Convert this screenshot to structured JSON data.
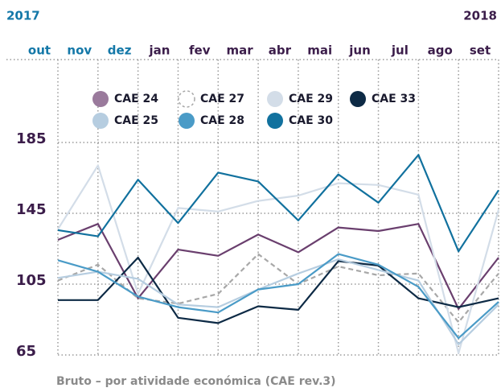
{
  "chart_data": {
    "type": "line",
    "years": [
      {
        "label": "2017",
        "color": "#1478a8"
      },
      {
        "label": "2018",
        "color": "#3b1d4a"
      }
    ],
    "categories": [
      "out",
      "nov",
      "dez",
      "jan",
      "fev",
      "mar",
      "abr",
      "mai",
      "jun",
      "jul",
      "ago",
      "set"
    ],
    "category_colors": [
      "#1478a8",
      "#1478a8",
      "#1478a8",
      "#3b1d4a",
      "#3b1d4a",
      "#3b1d4a",
      "#3b1d4a",
      "#3b1d4a",
      "#3b1d4a",
      "#3b1d4a",
      "#3b1d4a",
      "#3b1d4a"
    ],
    "ylim": [
      65,
      185
    ],
    "yticks": [
      65,
      105,
      145,
      185
    ],
    "grid": true,
    "footnote": "Bruto – por atividade económica (CAE rev.3)",
    "series": [
      {
        "name": "CAE 24",
        "color": "#6a3f6e",
        "legend_color": "#9a7a9c",
        "values": [
          130,
          139,
          97,
          124.5,
          121,
          133,
          123,
          137,
          135,
          139,
          91,
          120
        ]
      },
      {
        "name": "CAE 27",
        "color": "#a8a8a8",
        "dashed": true,
        "values": [
          107,
          116,
          97,
          94,
          99.5,
          122,
          105,
          115,
          110,
          111,
          83.5,
          111
        ]
      },
      {
        "name": "CAE 29",
        "color": "#d3dde8",
        "values": [
          136,
          172,
          99.5,
          148,
          146,
          152,
          155,
          162,
          161,
          155.5,
          66,
          147
        ]
      },
      {
        "name": "CAE 33",
        "color": "#0d2a45",
        "values": [
          96,
          96,
          120,
          86,
          83,
          92.5,
          90.5,
          118,
          115.5,
          97,
          92,
          97
        ]
      },
      {
        "name": "CAE 25",
        "color": "#b6cde0",
        "values": [
          108.5,
          112,
          108,
          93.5,
          92,
          102,
          111,
          119,
          113,
          107,
          71,
          93.5
        ]
      },
      {
        "name": "CAE 28",
        "color": "#4a9bc7",
        "values": [
          118.5,
          112,
          98,
          92,
          89,
          102,
          105,
          122,
          116,
          103.5,
          74.5,
          95
        ]
      },
      {
        "name": "CAE 30",
        "color": "#11719e",
        "values": [
          135.5,
          132,
          164,
          139.5,
          168,
          163,
          141,
          167,
          151,
          178,
          123.5,
          158
        ]
      }
    ]
  }
}
